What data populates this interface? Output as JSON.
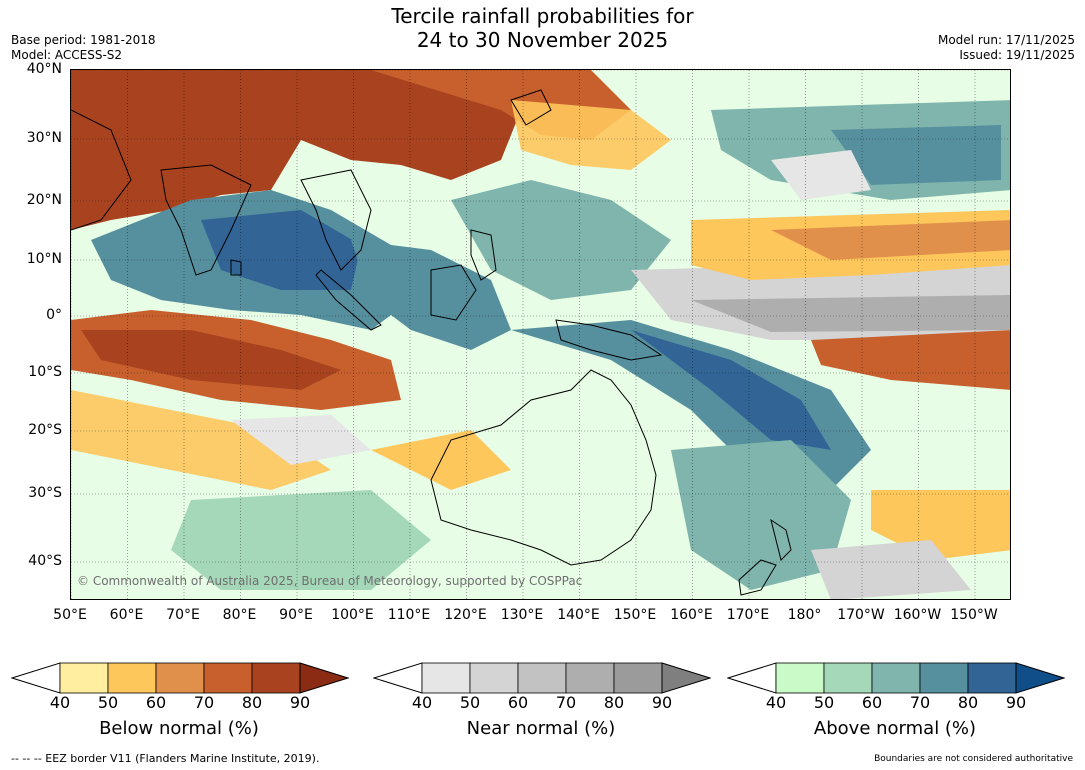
{
  "title_line1": "Tercile rainfall probabilities for",
  "title_line2": "24 to 30 November 2025",
  "meta_left": {
    "base_period": "Base period: 1981-2018",
    "model": "Model: ACCESS-S2"
  },
  "meta_right": {
    "model_run": "Model run: 17/11/2025",
    "issued": "Issued: 19/11/2025"
  },
  "map": {
    "lon_range": [
      50,
      -145
    ],
    "lat_range": [
      40,
      -46
    ],
    "lat_labels": [
      "40°N",
      "30°N",
      "20°N",
      "10°N",
      "0°",
      "10°S",
      "20°S",
      "30°S",
      "40°S"
    ],
    "lon_labels": [
      "50°E",
      "60°E",
      "70°E",
      "80°E",
      "90°E",
      "100°E",
      "110°E",
      "120°E",
      "130°E",
      "140°E",
      "150°E",
      "160°E",
      "170°E",
      "180°",
      "170°W",
      "160°W",
      "150°W"
    ],
    "credit": "© Commonwealth of Australia 2025, Bureau of Meteorology, supported by COSPPac",
    "land_color": "#ffffff",
    "coast_color": "#000000",
    "border_color": "#808080"
  },
  "colorbars": [
    {
      "title": "Below normal (%)",
      "ticks": [
        "40",
        "50",
        "60",
        "70",
        "80",
        "90"
      ],
      "colors": [
        "#ffeda0",
        "#fec75c",
        "#e0904a",
        "#c8602e",
        "#a9431f"
      ],
      "extend_color": "#8b2b13"
    },
    {
      "title": "Near normal (%)",
      "ticks": [
        "40",
        "50",
        "60",
        "70",
        "80",
        "90"
      ],
      "colors": [
        "#e6e6e6",
        "#d4d4d4",
        "#c2c2c2",
        "#aeaeae",
        "#9b9b9b"
      ],
      "extend_color": "#7f7f7f"
    },
    {
      "title": "Above normal (%)",
      "ticks": [
        "40",
        "50",
        "60",
        "70",
        "80",
        "90"
      ],
      "colors": [
        "#c9fac8",
        "#a5d8b9",
        "#7fb5ac",
        "#56909e",
        "#326596"
      ],
      "extend_color": "#104e89"
    }
  ],
  "footer_left": "--  --  -- EEZ border V11 (Flanders Marine Institute, 2019).",
  "footer_right": "Boundaries are not considered authoritative"
}
